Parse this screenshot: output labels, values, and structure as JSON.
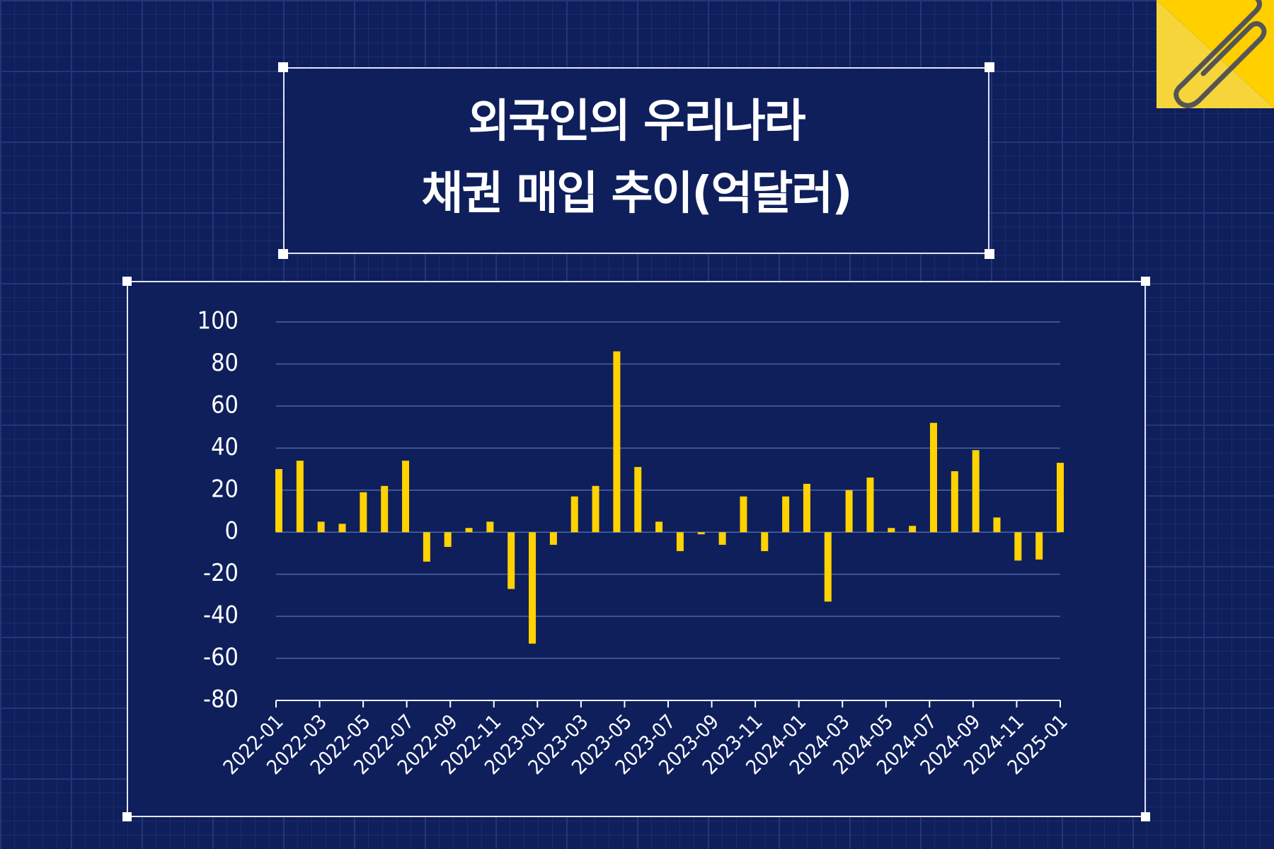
{
  "chart_data": {
    "type": "bar",
    "title": "외국인의 우리나라\n채권 매입 추이(억달러)",
    "categories": [
      "2022-01",
      null,
      "2022-03",
      null,
      "2022-05",
      null,
      "2022-07",
      null,
      "2022-09",
      null,
      "2022-11",
      null,
      "2023-01",
      null,
      "2023-03",
      null,
      "2023-05",
      null,
      "2023-07",
      null,
      "2023-09",
      null,
      "2023-11",
      null,
      "2024-01",
      null,
      "2024-03",
      null,
      "2024-05",
      null,
      "2024-07",
      null,
      "2024-09",
      null,
      "2024-11",
      null,
      "2025-01",
      null
    ],
    "values": [
      30,
      34,
      5,
      4,
      19,
      22,
      34,
      -14,
      -7,
      2,
      5,
      -27,
      -53,
      -6,
      17,
      22,
      86,
      31,
      5,
      -9,
      -1,
      -6,
      17,
      -9,
      17,
      23,
      -33,
      20,
      26,
      2,
      3,
      52,
      29,
      39,
      7,
      -13.5,
      -13,
      33
    ],
    "color": "#ffd200",
    "ylim": [
      -80,
      100
    ],
    "yticks": [
      -80,
      -60,
      -40,
      -20,
      0,
      20,
      40,
      60,
      80,
      100
    ],
    "grid": true
  }
}
